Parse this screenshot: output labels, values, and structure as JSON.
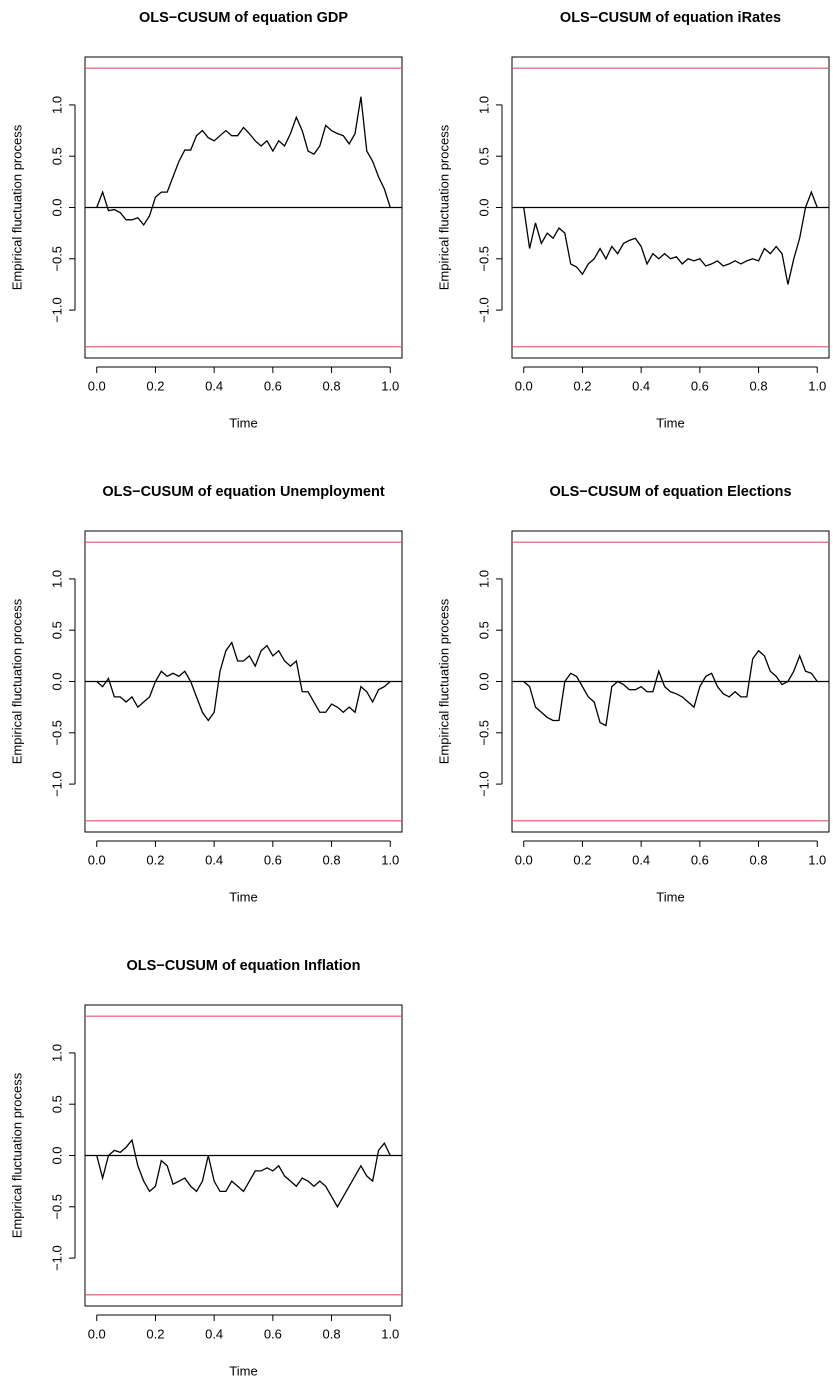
{
  "chart_data": [
    {
      "type": "line",
      "title": "OLS−CUSUM of equation GDP",
      "xlabel": "Time",
      "ylabel": "Empirical fluctuation process",
      "x": [
        0,
        0.02,
        0.04,
        0.06,
        0.08,
        0.1,
        0.12,
        0.14,
        0.16,
        0.18,
        0.2,
        0.22,
        0.24,
        0.26,
        0.28,
        0.3,
        0.32,
        0.34,
        0.36,
        0.38,
        0.4,
        0.42,
        0.44,
        0.46,
        0.48,
        0.5,
        0.52,
        0.54,
        0.56,
        0.58,
        0.6,
        0.62,
        0.64,
        0.66,
        0.68,
        0.7,
        0.72,
        0.74,
        0.76,
        0.78,
        0.8,
        0.82,
        0.84,
        0.86,
        0.88,
        0.9,
        0.92,
        0.94,
        0.96,
        0.98,
        1
      ],
      "values": [
        0,
        0.15,
        -0.03,
        -0.02,
        -0.05,
        -0.12,
        -0.12,
        -0.1,
        -0.17,
        -0.08,
        0.1,
        0.15,
        0.15,
        0.3,
        0.45,
        0.56,
        0.56,
        0.7,
        0.75,
        0.68,
        0.65,
        0.7,
        0.75,
        0.7,
        0.7,
        0.78,
        0.72,
        0.65,
        0.6,
        0.65,
        0.55,
        0.65,
        0.6,
        0.72,
        0.88,
        0.75,
        0.55,
        0.52,
        0.6,
        0.8,
        0.75,
        0.72,
        0.7,
        0.62,
        0.72,
        1.08,
        0.55,
        0.45,
        0.3,
        0.18,
        0
      ],
      "color": "#000000",
      "boundary": [
        -1.358,
        1.358
      ],
      "boundary_color": "#df536b",
      "hline": 0,
      "xlim": [
        -0.04,
        1.04
      ],
      "ylim": [
        -1.467,
        1.467
      ],
      "xticks": [
        {
          "value": 0,
          "label": "0.0"
        },
        0.2,
        0.4,
        0.6,
        0.8,
        {
          "value": 1,
          "label": "1.0"
        }
      ],
      "yticks": [
        {
          "value": -1,
          "label": "−1.0"
        },
        {
          "value": -0.5,
          "label": "−0.5"
        },
        {
          "value": 0,
          "label": "0.0"
        },
        0.5,
        {
          "value": 1,
          "label": "1.0"
        }
      ]
    },
    {
      "type": "line",
      "title": "OLS−CUSUM of equation iRates",
      "xlabel": "Time",
      "ylabel": "Empirical fluctuation process",
      "x": [
        0,
        0.02,
        0.04,
        0.06,
        0.08,
        0.1,
        0.12,
        0.14,
        0.16,
        0.18,
        0.2,
        0.22,
        0.24,
        0.26,
        0.28,
        0.3,
        0.32,
        0.34,
        0.36,
        0.38,
        0.4,
        0.42,
        0.44,
        0.46,
        0.48,
        0.5,
        0.52,
        0.54,
        0.56,
        0.58,
        0.6,
        0.62,
        0.64,
        0.66,
        0.68,
        0.7,
        0.72,
        0.74,
        0.76,
        0.78,
        0.8,
        0.82,
        0.84,
        0.86,
        0.88,
        0.9,
        0.92,
        0.94,
        0.96,
        0.98,
        1
      ],
      "values": [
        0,
        -0.4,
        -0.15,
        -0.35,
        -0.25,
        -0.3,
        -0.2,
        -0.25,
        -0.55,
        -0.58,
        -0.65,
        -0.55,
        -0.5,
        -0.4,
        -0.5,
        -0.38,
        -0.45,
        -0.35,
        -0.32,
        -0.3,
        -0.38,
        -0.55,
        -0.45,
        -0.5,
        -0.45,
        -0.5,
        -0.48,
        -0.55,
        -0.5,
        -0.52,
        -0.5,
        -0.57,
        -0.55,
        -0.52,
        -0.57,
        -0.55,
        -0.52,
        -0.55,
        -0.52,
        -0.5,
        -0.52,
        -0.4,
        -0.45,
        -0.38,
        -0.45,
        -0.75,
        -0.5,
        -0.3,
        0,
        0.15,
        0
      ],
      "color": "#000000",
      "boundary": [
        -1.358,
        1.358
      ],
      "boundary_color": "#df536b",
      "hline": 0,
      "xlim": [
        -0.04,
        1.04
      ],
      "ylim": [
        -1.467,
        1.467
      ],
      "xticks": [
        {
          "value": 0,
          "label": "0.0"
        },
        0.2,
        0.4,
        0.6,
        0.8,
        {
          "value": 1,
          "label": "1.0"
        }
      ],
      "yticks": [
        {
          "value": -1,
          "label": "−1.0"
        },
        {
          "value": -0.5,
          "label": "−0.5"
        },
        {
          "value": 0,
          "label": "0.0"
        },
        0.5,
        {
          "value": 1,
          "label": "1.0"
        }
      ]
    },
    {
      "type": "line",
      "title": "OLS−CUSUM of equation Unemployment",
      "xlabel": "Time",
      "ylabel": "Empirical fluctuation process",
      "x": [
        0,
        0.02,
        0.04,
        0.06,
        0.08,
        0.1,
        0.12,
        0.14,
        0.16,
        0.18,
        0.2,
        0.22,
        0.24,
        0.26,
        0.28,
        0.3,
        0.32,
        0.34,
        0.36,
        0.38,
        0.4,
        0.42,
        0.44,
        0.46,
        0.48,
        0.5,
        0.52,
        0.54,
        0.56,
        0.58,
        0.6,
        0.62,
        0.64,
        0.66,
        0.68,
        0.7,
        0.72,
        0.74,
        0.76,
        0.78,
        0.8,
        0.82,
        0.84,
        0.86,
        0.88,
        0.9,
        0.92,
        0.94,
        0.96,
        0.98,
        1
      ],
      "values": [
        0,
        -0.05,
        0.03,
        -0.15,
        -0.15,
        -0.2,
        -0.15,
        -0.25,
        -0.2,
        -0.15,
        0,
        0.1,
        0.05,
        0.08,
        0.05,
        0.1,
        0,
        -0.15,
        -0.3,
        -0.38,
        -0.3,
        0.1,
        0.3,
        0.38,
        0.2,
        0.2,
        0.25,
        0.15,
        0.3,
        0.35,
        0.25,
        0.3,
        0.2,
        0.15,
        0.2,
        -0.1,
        -0.1,
        -0.2,
        -0.3,
        -0.3,
        -0.22,
        -0.25,
        -0.3,
        -0.25,
        -0.3,
        -0.05,
        -0.1,
        -0.2,
        -0.08,
        -0.05,
        0
      ],
      "color": "#000000",
      "boundary": [
        -1.358,
        1.358
      ],
      "boundary_color": "#df536b",
      "hline": 0,
      "xlim": [
        -0.04,
        1.04
      ],
      "ylim": [
        -1.467,
        1.467
      ],
      "xticks": [
        {
          "value": 0,
          "label": "0.0"
        },
        0.2,
        0.4,
        0.6,
        0.8,
        {
          "value": 1,
          "label": "1.0"
        }
      ],
      "yticks": [
        {
          "value": -1,
          "label": "−1.0"
        },
        {
          "value": -0.5,
          "label": "−0.5"
        },
        {
          "value": 0,
          "label": "0.0"
        },
        0.5,
        {
          "value": 1,
          "label": "1.0"
        }
      ]
    },
    {
      "type": "line",
      "title": "OLS−CUSUM of equation Elections",
      "xlabel": "Time",
      "ylabel": "Empirical fluctuation process",
      "x": [
        0,
        0.02,
        0.04,
        0.06,
        0.08,
        0.1,
        0.12,
        0.14,
        0.16,
        0.18,
        0.2,
        0.22,
        0.24,
        0.26,
        0.28,
        0.3,
        0.32,
        0.34,
        0.36,
        0.38,
        0.4,
        0.42,
        0.44,
        0.46,
        0.48,
        0.5,
        0.52,
        0.54,
        0.56,
        0.58,
        0.6,
        0.62,
        0.64,
        0.66,
        0.68,
        0.7,
        0.72,
        0.74,
        0.76,
        0.78,
        0.8,
        0.82,
        0.84,
        0.86,
        0.88,
        0.9,
        0.92,
        0.94,
        0.96,
        0.98,
        1
      ],
      "values": [
        0,
        -0.05,
        -0.25,
        -0.3,
        -0.35,
        -0.38,
        -0.38,
        0,
        0.08,
        0.05,
        -0.05,
        -0.15,
        -0.2,
        -0.4,
        -0.43,
        -0.05,
        0,
        -0.03,
        -0.08,
        -0.08,
        -0.05,
        -0.1,
        -0.1,
        0.1,
        -0.05,
        -0.1,
        -0.12,
        -0.15,
        -0.2,
        -0.25,
        -0.05,
        0.05,
        0.08,
        -0.05,
        -0.12,
        -0.15,
        -0.1,
        -0.15,
        -0.15,
        0.22,
        0.3,
        0.25,
        0.1,
        0.05,
        -0.03,
        0,
        0.1,
        0.25,
        0.1,
        0.08,
        0
      ],
      "color": "#000000",
      "boundary": [
        -1.358,
        1.358
      ],
      "boundary_color": "#df536b",
      "hline": 0,
      "xlim": [
        -0.04,
        1.04
      ],
      "ylim": [
        -1.467,
        1.467
      ],
      "xticks": [
        {
          "value": 0,
          "label": "0.0"
        },
        0.2,
        0.4,
        0.6,
        0.8,
        {
          "value": 1,
          "label": "1.0"
        }
      ],
      "yticks": [
        {
          "value": -1,
          "label": "−1.0"
        },
        {
          "value": -0.5,
          "label": "−0.5"
        },
        {
          "value": 0,
          "label": "0.0"
        },
        0.5,
        {
          "value": 1,
          "label": "1.0"
        }
      ]
    },
    {
      "type": "line",
      "title": "OLS−CUSUM of equation Inflation",
      "xlabel": "Time",
      "ylabel": "Empirical fluctuation process",
      "x": [
        0,
        0.02,
        0.04,
        0.06,
        0.08,
        0.1,
        0.12,
        0.14,
        0.16,
        0.18,
        0.2,
        0.22,
        0.24,
        0.26,
        0.28,
        0.3,
        0.32,
        0.34,
        0.36,
        0.38,
        0.4,
        0.42,
        0.44,
        0.46,
        0.48,
        0.5,
        0.52,
        0.54,
        0.56,
        0.58,
        0.6,
        0.62,
        0.64,
        0.66,
        0.68,
        0.7,
        0.72,
        0.74,
        0.76,
        0.78,
        0.8,
        0.82,
        0.84,
        0.86,
        0.88,
        0.9,
        0.92,
        0.94,
        0.96,
        0.98,
        1
      ],
      "values": [
        0,
        -0.22,
        0,
        0.05,
        0.03,
        0.08,
        0.15,
        -0.1,
        -0.25,
        -0.35,
        -0.3,
        -0.05,
        -0.1,
        -0.28,
        -0.25,
        -0.22,
        -0.3,
        -0.35,
        -0.25,
        0,
        -0.25,
        -0.35,
        -0.35,
        -0.25,
        -0.3,
        -0.35,
        -0.25,
        -0.15,
        -0.15,
        -0.12,
        -0.15,
        -0.1,
        -0.2,
        -0.25,
        -0.3,
        -0.22,
        -0.25,
        -0.3,
        -0.25,
        -0.3,
        -0.4,
        -0.5,
        -0.4,
        -0.3,
        -0.2,
        -0.1,
        -0.2,
        -0.25,
        0.05,
        0.12,
        0
      ],
      "color": "#000000",
      "boundary": [
        -1.358,
        1.358
      ],
      "boundary_color": "#df536b",
      "hline": 0,
      "xlim": [
        -0.04,
        1.04
      ],
      "ylim": [
        -1.467,
        1.467
      ],
      "xticks": [
        {
          "value": 0,
          "label": "0.0"
        },
        0.2,
        0.4,
        0.6,
        0.8,
        {
          "value": 1,
          "label": "1.0"
        }
      ],
      "yticks": [
        {
          "value": -1,
          "label": "−1.0"
        },
        {
          "value": -0.5,
          "label": "−0.5"
        },
        {
          "value": 0,
          "label": "0.0"
        },
        0.5,
        {
          "value": 1,
          "label": "1.0"
        }
      ]
    }
  ]
}
